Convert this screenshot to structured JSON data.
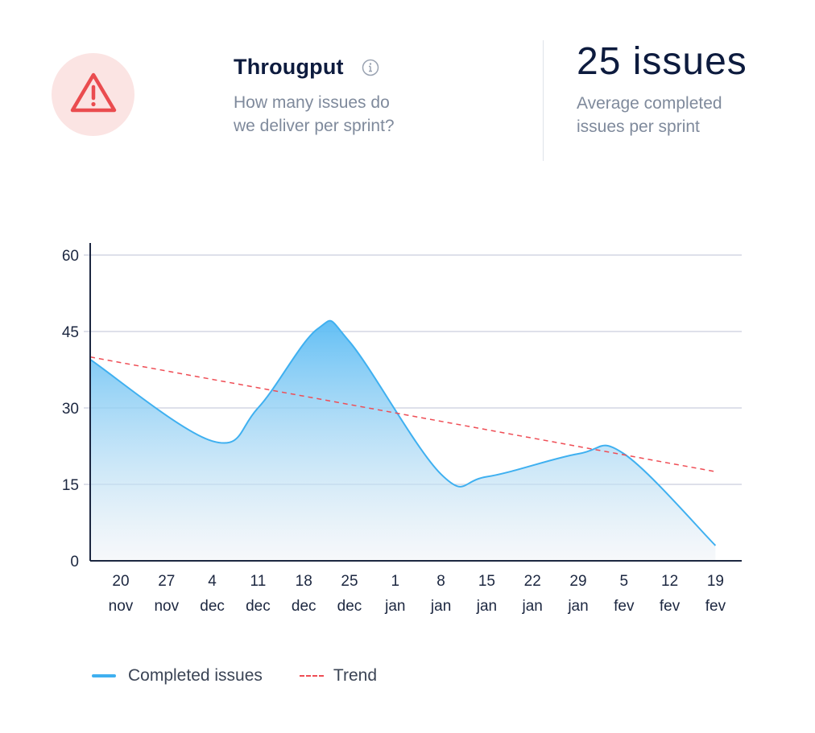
{
  "header": {
    "title": "Througput",
    "description": "How many issues do we deliver per sprint?",
    "icon": "warning-triangle-icon",
    "info_icon": "info-icon"
  },
  "kpi": {
    "value": "25 issues",
    "description": "Average completed issues per sprint"
  },
  "colors": {
    "warning": "#ea4c4f",
    "warning_bg": "#fbe4e3",
    "series": "#3fb0f0",
    "trend": "#ef4d55"
  },
  "chart_data": {
    "type": "area",
    "x_ticks": [
      [
        "20",
        "nov"
      ],
      [
        "27",
        "nov"
      ],
      [
        "4",
        "dec"
      ],
      [
        "11",
        "dec"
      ],
      [
        "18",
        "dec"
      ],
      [
        "25",
        "dec"
      ],
      [
        "1",
        "jan"
      ],
      [
        "8",
        "jan"
      ],
      [
        "15",
        "jan"
      ],
      [
        "22",
        "jan"
      ],
      [
        "29",
        "jan"
      ],
      [
        "5",
        "fev"
      ],
      [
        "12",
        "fev"
      ],
      [
        "19",
        "fev"
      ]
    ],
    "y_ticks": [
      0,
      15,
      30,
      45,
      60
    ],
    "ylim": [
      0,
      60
    ],
    "grid": true,
    "legend_position": "bottom-left",
    "series": [
      {
        "name": "Completed issues",
        "style": "solid-area",
        "x": [
          0,
          2,
          3,
          4.3,
          5,
          7,
          8,
          10,
          11,
          13
        ],
        "values": [
          39.5,
          23.5,
          30,
          45.5,
          43,
          17,
          16.5,
          21,
          21,
          3
        ]
      },
      {
        "name": "Trend",
        "style": "dashed",
        "x": [
          0,
          13
        ],
        "values": [
          40,
          17.5
        ]
      }
    ]
  }
}
